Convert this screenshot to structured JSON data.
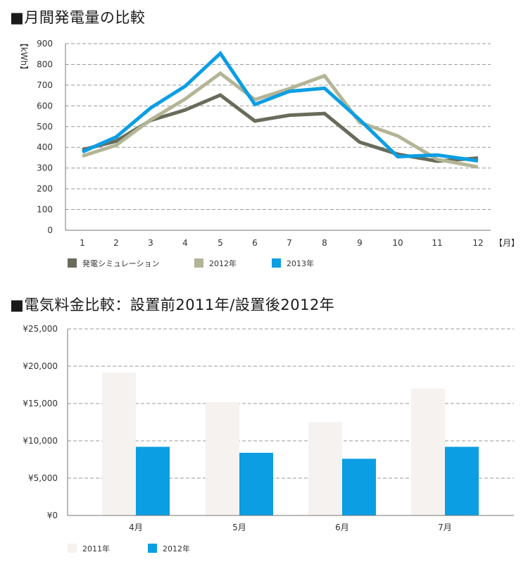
{
  "chart_data": [
    {
      "type": "line",
      "title": "■月間発電量の比較",
      "ylabel": "【kWh】",
      "xlabel": "【月】",
      "ylim": [
        0,
        900
      ],
      "yticks": [
        "900",
        "800",
        "700",
        "600",
        "500",
        "400",
        "300",
        "200",
        "100",
        "0"
      ],
      "categories": [
        "1",
        "2",
        "3",
        "4",
        "5",
        "6",
        "7",
        "8",
        "9",
        "10",
        "11",
        "12"
      ],
      "grid": true,
      "legend": "bottom",
      "series": [
        {
          "name": "発電シミュレーション",
          "color": "#686c5b",
          "values": [
            388,
            430,
            530,
            580,
            652,
            527,
            555,
            563,
            425,
            367,
            333,
            348
          ]
        },
        {
          "name": "2012年",
          "color": "#b4b596",
          "values": [
            358,
            410,
            533,
            633,
            757,
            630,
            683,
            745,
            520,
            455,
            342,
            305
          ]
        },
        {
          "name": "2013年",
          "color": "#0b9ee3",
          "values": [
            378,
            450,
            590,
            695,
            853,
            607,
            670,
            685,
            533,
            355,
            363,
            335
          ]
        }
      ]
    },
    {
      "type": "bar",
      "title": "■電気料金比較：設置前2011年/設置後2012年",
      "ylim": [
        0,
        25000
      ],
      "yticks": [
        "¥25,000",
        "¥20,000",
        "¥15,000",
        "¥10,000",
        "¥5,000",
        "¥0"
      ],
      "categories": [
        "4月",
        "5月",
        "6月",
        "7月"
      ],
      "grid": true,
      "legend": "bottom",
      "series": [
        {
          "name": "2011年",
          "color": "#f5f2ef",
          "values": [
            19100,
            15200,
            12500,
            17000
          ]
        },
        {
          "name": "2012年",
          "color": "#0b9ee3",
          "values": [
            9200,
            8400,
            7600,
            9200
          ]
        }
      ]
    }
  ]
}
